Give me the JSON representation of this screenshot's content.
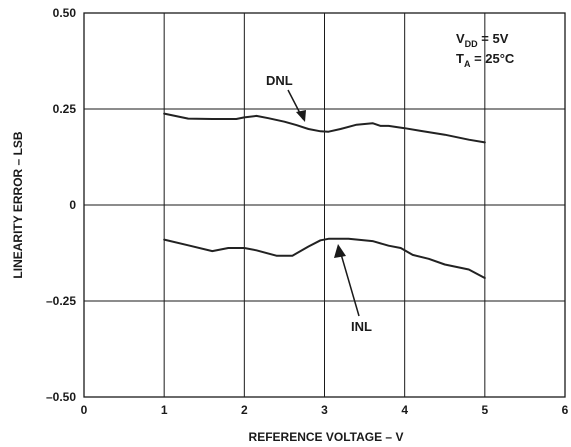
{
  "chart_data": {
    "type": "line",
    "title": "",
    "xlabel": "REFERENCE VOLTAGE – V",
    "ylabel": "LINEARITY ERROR – LSB",
    "xlim": [
      0,
      6
    ],
    "ylim": [
      -0.5,
      0.5
    ],
    "grid": true,
    "x_ticks": [
      {
        "value": 0,
        "label": "0"
      },
      {
        "value": 1,
        "label": "1"
      },
      {
        "value": 2,
        "label": "2"
      },
      {
        "value": 3,
        "label": "3"
      },
      {
        "value": 4,
        "label": "4"
      },
      {
        "value": 5,
        "label": "5"
      },
      {
        "value": 6,
        "label": "6"
      }
    ],
    "y_ticks": [
      {
        "value": 0.5,
        "label": "0.50"
      },
      {
        "value": 0.25,
        "label": "0.25"
      },
      {
        "value": 0,
        "label": "0"
      },
      {
        "value": -0.25,
        "label": "–0.25"
      },
      {
        "value": -0.5,
        "label": "–0.50"
      }
    ],
    "series": [
      {
        "name": "DNL",
        "color": "#222222",
        "x": [
          1.0,
          1.3,
          1.6,
          1.9,
          2.0,
          2.15,
          2.3,
          2.5,
          2.65,
          2.8,
          2.95,
          3.05,
          3.2,
          3.4,
          3.6,
          3.7,
          3.8,
          4.0,
          4.2,
          4.5,
          4.8,
          5.0
        ],
        "y": [
          0.238,
          0.225,
          0.224,
          0.224,
          0.228,
          0.232,
          0.226,
          0.217,
          0.208,
          0.198,
          0.192,
          0.191,
          0.198,
          0.209,
          0.213,
          0.206,
          0.206,
          0.2,
          0.193,
          0.183,
          0.17,
          0.163
        ]
      },
      {
        "name": "INL",
        "color": "#222222",
        "x": [
          1.0,
          1.3,
          1.6,
          1.8,
          2.0,
          2.15,
          2.4,
          2.6,
          2.8,
          2.95,
          3.05,
          3.3,
          3.6,
          3.8,
          3.95,
          4.1,
          4.3,
          4.5,
          4.8,
          5.0
        ],
        "y": [
          -0.09,
          -0.105,
          -0.12,
          -0.112,
          -0.112,
          -0.118,
          -0.132,
          -0.132,
          -0.108,
          -0.092,
          -0.088,
          -0.088,
          -0.094,
          -0.106,
          -0.112,
          -0.13,
          -0.14,
          -0.155,
          -0.168,
          -0.19
        ]
      }
    ],
    "annotations": [
      {
        "text": "DNL",
        "series": "DNL"
      },
      {
        "text": "INL",
        "series": "INL"
      }
    ],
    "conditions": {
      "vdd": {
        "main": "V",
        "sub": "DD",
        "rest": " = 5V"
      },
      "ta": {
        "main": "T",
        "sub": "A",
        "rest": " = 25°C"
      }
    }
  }
}
